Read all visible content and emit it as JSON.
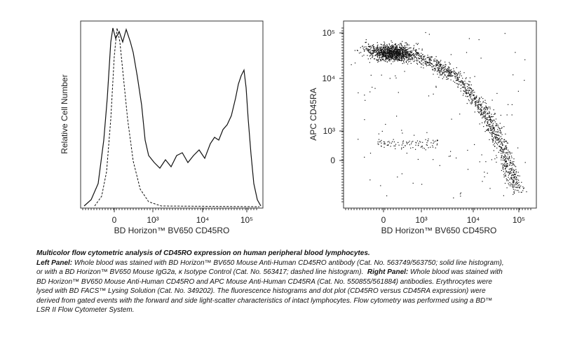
{
  "figure": {
    "left_panel": {
      "y_label": "Relative Cell Number",
      "x_label": "BD Horizon™ BV650 CD45RO",
      "x_tick_labels": [
        "0",
        "10³",
        "10⁴",
        "10⁵"
      ]
    },
    "right_panel": {
      "y_label": "APC CD45RA",
      "x_label": "BD Horizon™ BV650 CD45RO",
      "x_tick_labels": [
        "0",
        "10³",
        "10⁴",
        "10⁵"
      ],
      "y_tick_labels": [
        "10⁵",
        "10⁴",
        "10³",
        "0"
      ]
    }
  },
  "caption": {
    "title": "Multicolor flow cytometric analysis of CD45RO expression on human peripheral blood lymphocytes.",
    "left_label": "Left Panel:",
    "left_text": "Whole blood was stained with BD Horizon™ BV650 Mouse Anti-Human CD45RO antibody (Cat. No. 563749/563750; solid line histogram), or with a BD Horizon™ BV650 Mouse IgG2a, κ Isotype Control (Cat. No. 563417; dashed line histogram).",
    "right_label": "Right Panel:",
    "right_text": "Whole blood was stained with BD Horizon™ BV650 Mouse Anti-Human CD45RO and APC Mouse Anti-Human CD45RA (Cat. No. 550855/561884) antibodies. Erythrocytes were lysed with BD FACS™ Lysing Solution (Cat. No. 349202). The fluorescence histograms and dot plot (CD45RO versus CD45RA expression) were derived from gated events with the forward and side light-scatter characteristics of intact lymphocytes. Flow cytometry was performed using a BD™ LSR II Flow Cytometer System."
  }
}
